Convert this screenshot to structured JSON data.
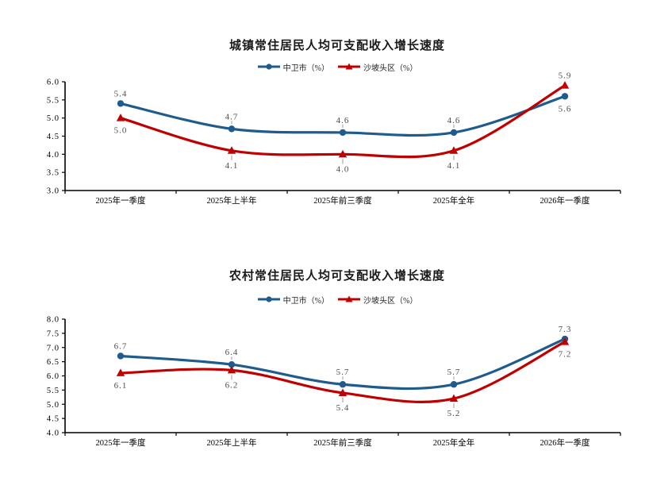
{
  "page": {
    "background": "#ffffff"
  },
  "colors": {
    "series_blue": "#1F5C8D",
    "series_red": "#C00000",
    "data_label_gray": "#4D4D4D",
    "axis_black": "#000000",
    "leader_gray": "#999999",
    "title_black": "#1a1a1a"
  },
  "chart_data": [
    {
      "type": "line",
      "title": "城镇常住居民人均可支配收入增长速度",
      "categories": [
        "2025年一季度",
        "2025年上半年",
        "2025年前三季度",
        "2025年全年",
        "2026年一季度"
      ],
      "series": [
        {
          "name": "中卫市（%）",
          "color": "#1F5C8D",
          "marker": "circle",
          "values": [
            5.4,
            4.7,
            4.6,
            4.6,
            5.6
          ],
          "labels": [
            "5.4",
            "4.7",
            "4.6",
            "4.6",
            "5.6"
          ],
          "label_side": [
            "above",
            "above",
            "above",
            "above",
            "below"
          ],
          "label_leader": [
            false,
            true,
            true,
            true,
            false
          ]
        },
        {
          "name": "沙坡头区（%）",
          "color": "#C00000",
          "marker": "triangle",
          "values": [
            5.0,
            4.1,
            4.0,
            4.1,
            5.9
          ],
          "labels": [
            "5.0",
            "4.1",
            "4.0",
            "4.1",
            "5.9"
          ],
          "label_side": [
            "below",
            "below",
            "below",
            "below",
            "above"
          ],
          "label_leader": [
            false,
            true,
            true,
            true,
            false
          ]
        }
      ],
      "ylim": [
        3.0,
        6.0
      ],
      "ytick_step": 0.5,
      "ytick_labels": [
        "3.0",
        "3.5",
        "4.0",
        "4.5",
        "5.0",
        "5.5",
        "6.0"
      ],
      "legend_position": "top",
      "grid": false,
      "smooth": true
    },
    {
      "type": "line",
      "title": "农村常住居民人均可支配收入增长速度",
      "categories": [
        "2025年一季度",
        "2025年上半年",
        "2025年前三季度",
        "2025年全年",
        "2026年一季度"
      ],
      "series": [
        {
          "name": "中卫市（%）",
          "color": "#1F5C8D",
          "marker": "circle",
          "values": [
            6.7,
            6.4,
            5.7,
            5.7,
            7.3
          ],
          "labels": [
            "6.7",
            "6.4",
            "5.7",
            "5.7",
            "7.3"
          ],
          "label_side": [
            "above",
            "above",
            "above",
            "above",
            "above"
          ],
          "label_leader": [
            false,
            true,
            true,
            true,
            false
          ]
        },
        {
          "name": "沙坡头区（%）",
          "color": "#C00000",
          "marker": "triangle",
          "values": [
            6.1,
            6.2,
            5.4,
            5.2,
            7.2
          ],
          "labels": [
            "6.1",
            "6.2",
            "5.4",
            "5.2",
            "7.2"
          ],
          "label_side": [
            "below",
            "below",
            "below",
            "below",
            "below"
          ],
          "label_leader": [
            false,
            true,
            true,
            true,
            false
          ]
        }
      ],
      "ylim": [
        4.0,
        8.0
      ],
      "ytick_step": 0.5,
      "ytick_labels": [
        "4.0",
        "4.5",
        "5.0",
        "5.5",
        "6.0",
        "6.5",
        "7.0",
        "7.5",
        "8.0"
      ],
      "legend_position": "top",
      "grid": false,
      "smooth": true
    }
  ]
}
